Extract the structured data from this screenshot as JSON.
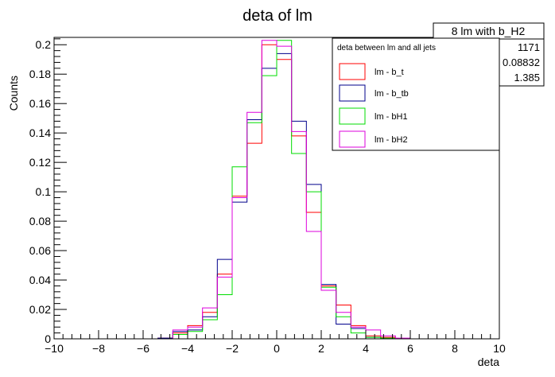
{
  "chart_data": {
    "type": "histogram",
    "title": "deta of lm",
    "xlabel": "deta",
    "ylabel": "Counts",
    "xlim": [
      -10,
      10
    ],
    "ylim": [
      0,
      0.205
    ],
    "x_ticks": [
      -10,
      -8,
      -6,
      -4,
      -2,
      0,
      2,
      4,
      6,
      8,
      10
    ],
    "x_tick_labels": [
      "−10",
      "−8",
      "−6",
      "−4",
      "−2",
      "0",
      "2",
      "4",
      "6",
      "8",
      "10"
    ],
    "y_ticks": [
      0,
      0.02,
      0.04,
      0.06,
      0.08,
      0.1,
      0.12,
      0.14,
      0.16,
      0.18,
      0.2
    ],
    "y_tick_labels": [
      "0",
      "0.02",
      "0.04",
      "0.06",
      "0.08",
      "0.1",
      "0.12",
      "0.14",
      "0.16",
      "0.18",
      "0.2"
    ],
    "bin_edges": [
      -10,
      -9.333,
      -8.667,
      -8,
      -7.333,
      -6.667,
      -6,
      -5.333,
      -4.667,
      -4,
      -3.333,
      -2.667,
      -2,
      -1.333,
      -0.667,
      0,
      0.667,
      1.333,
      2,
      2.667,
      3.333,
      4,
      4.667,
      5.333,
      6,
      6.667,
      7.333,
      8,
      8.667,
      9.333,
      10
    ],
    "series": [
      {
        "name": "lm - b_t",
        "color": "#ff0000",
        "values": [
          0,
          0,
          0,
          0,
          0,
          0,
          0,
          0.0005,
          0.004,
          0.009,
          0.018,
          0.044,
          0.097,
          0.133,
          0.2,
          0.19,
          0.138,
          0.086,
          0.036,
          0.023,
          0.009,
          0.002,
          0.001,
          0,
          0,
          0,
          0,
          0,
          0,
          0
        ]
      },
      {
        "name": "lm - b_tb",
        "color": "#00008b",
        "values": [
          0,
          0,
          0,
          0,
          0,
          0,
          0,
          0.0005,
          0.005,
          0.006,
          0.015,
          0.054,
          0.093,
          0.149,
          0.184,
          0.194,
          0.148,
          0.105,
          0.037,
          0.01,
          0.007,
          0.001,
          0,
          0,
          0,
          0,
          0,
          0,
          0,
          0
        ]
      },
      {
        "name": "lm - bH1",
        "color": "#00dd00",
        "values": [
          0,
          0,
          0,
          0,
          0,
          0,
          0,
          0,
          0.003,
          0.005,
          0.013,
          0.03,
          0.117,
          0.147,
          0.179,
          0.203,
          0.126,
          0.1,
          0.035,
          0.015,
          0.004,
          0.001,
          0.0005,
          0,
          0,
          0,
          0,
          0,
          0,
          0
        ]
      },
      {
        "name": "lm - bH2",
        "color": "#dd00dd",
        "values": [
          0,
          0,
          0,
          0,
          0,
          0,
          0,
          0,
          0.006,
          0.008,
          0.021,
          0.042,
          0.096,
          0.154,
          0.203,
          0.199,
          0.141,
          0.073,
          0.033,
          0.018,
          0.008,
          0.006,
          0.002,
          0.0005,
          0,
          0,
          0,
          0,
          0,
          0
        ]
      }
    ],
    "legend": {
      "header": "deta between lm and all jets",
      "placement": "top-right",
      "entries": [
        "lm - b_t",
        "lm - b_tb",
        "lm - bH1",
        "lm - bH2"
      ]
    },
    "stats_box": {
      "title": "8 lm with b_H2",
      "values": [
        "1171",
        "0.08832",
        "1.385"
      ]
    }
  }
}
